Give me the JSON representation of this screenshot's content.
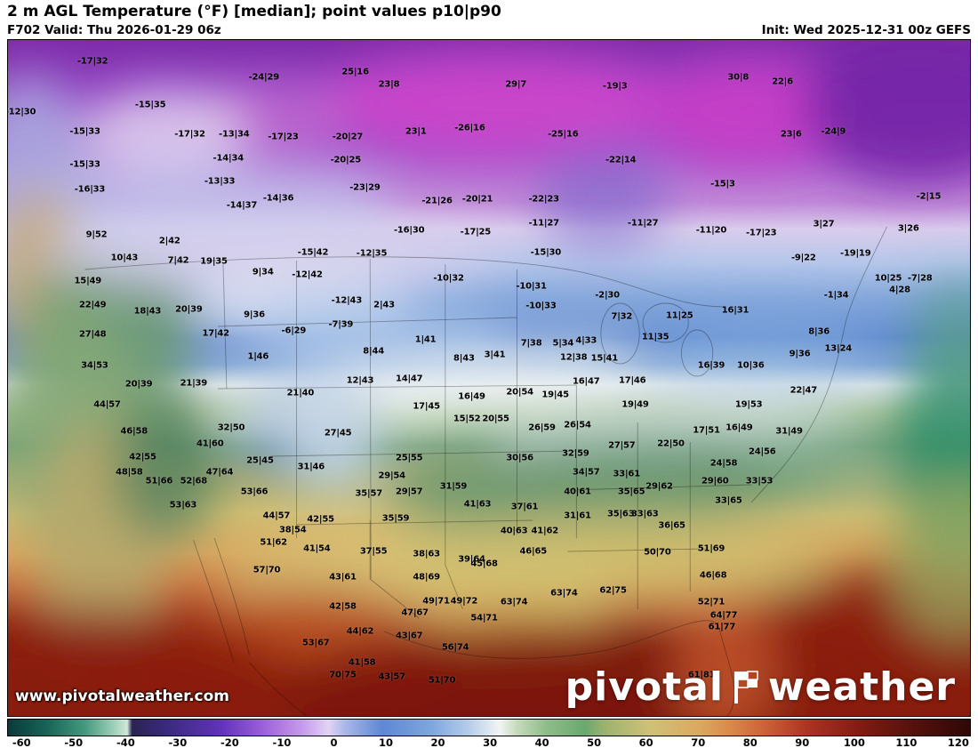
{
  "header": {
    "title": "2 m AGL Temperature (°F) [median]; point values p10|p90",
    "valid": "F702 Valid: Thu 2026-01-29 06z",
    "init": "Init: Wed 2025-12-31 00z GEFS"
  },
  "watermark": "www.pivotalweather.com",
  "logo": {
    "part1": "pivotal",
    "part2": "weather"
  },
  "colorbar": {
    "units": "°F",
    "ticks": [
      -60,
      -50,
      -40,
      -30,
      -20,
      -10,
      0,
      10,
      20,
      30,
      40,
      50,
      60,
      70,
      80,
      90,
      100,
      110,
      120
    ],
    "min": -60,
    "max": 120,
    "stops": [
      {
        "p": 0,
        "c": "#0b3a3b"
      },
      {
        "p": 4,
        "c": "#176357"
      },
      {
        "p": 8,
        "c": "#44997f"
      },
      {
        "p": 11,
        "c": "#9ed0b8"
      },
      {
        "p": 12.4,
        "c": "#cfe8da"
      },
      {
        "p": 12.9,
        "c": "#2a2352"
      },
      {
        "p": 16.7,
        "c": "#3b2a80"
      },
      {
        "p": 22.2,
        "c": "#6233b8"
      },
      {
        "p": 26.4,
        "c": "#9a5fd8"
      },
      {
        "p": 30.6,
        "c": "#c79aec"
      },
      {
        "p": 33.3,
        "c": "#e2d4f5"
      },
      {
        "p": 35,
        "c": "#aab8e8"
      },
      {
        "p": 38.9,
        "c": "#5f87d4"
      },
      {
        "p": 44,
        "c": "#7da6de"
      },
      {
        "p": 48,
        "c": "#b8cdea"
      },
      {
        "p": 51.1,
        "c": "#f2f4f4"
      },
      {
        "p": 53,
        "c": "#c4d9b8"
      },
      {
        "p": 56,
        "c": "#8fbc8a"
      },
      {
        "p": 60,
        "c": "#6aa86f"
      },
      {
        "p": 62,
        "c": "#9cb26e"
      },
      {
        "p": 66.7,
        "c": "#cfc177"
      },
      {
        "p": 72,
        "c": "#dba85e"
      },
      {
        "p": 75,
        "c": "#d98a4a"
      },
      {
        "p": 79,
        "c": "#c95f35"
      },
      {
        "p": 83.3,
        "c": "#a93222"
      },
      {
        "p": 89,
        "c": "#7d1a12"
      },
      {
        "p": 94.4,
        "c": "#54100c"
      },
      {
        "p": 100,
        "c": "#2e0806"
      }
    ]
  },
  "map_points": {
    "type": "map-points",
    "value_format": "p10|p90 (°F)",
    "points": [
      [
        8.8,
        3.2,
        "-17|32"
      ],
      [
        26.6,
        5.5,
        "-24|29"
      ],
      [
        36.1,
        4.7,
        "25|16"
      ],
      [
        39.6,
        6.6,
        "23|8"
      ],
      [
        52.8,
        6.6,
        "29|7"
      ],
      [
        63.1,
        6.9,
        "-19|3"
      ],
      [
        75.9,
        5.5,
        "30|8"
      ],
      [
        80.5,
        6.2,
        "22|6"
      ],
      [
        1.3,
        10.6,
        "-12|30"
      ],
      [
        14.8,
        9.6,
        "-15|35"
      ],
      [
        8.0,
        13.5,
        "-15|33"
      ],
      [
        18.9,
        14.0,
        "-17|32"
      ],
      [
        23.5,
        14.0,
        "-13|34"
      ],
      [
        28.6,
        14.3,
        "-17|23"
      ],
      [
        35.3,
        14.3,
        "-20|27"
      ],
      [
        42.4,
        13.5,
        "23|1"
      ],
      [
        48.0,
        13.0,
        "-26|16"
      ],
      [
        57.7,
        14.0,
        "-25|16"
      ],
      [
        81.4,
        13.9,
        "23|6"
      ],
      [
        85.8,
        13.6,
        "-24|9"
      ],
      [
        8.0,
        18.4,
        "-15|33"
      ],
      [
        22.9,
        17.5,
        "-14|34"
      ],
      [
        35.1,
        17.7,
        "-20|25"
      ],
      [
        63.7,
        17.7,
        "-22|14"
      ],
      [
        8.5,
        22.1,
        "-16|33"
      ],
      [
        22.0,
        20.9,
        "-13|33"
      ],
      [
        37.1,
        21.9,
        "-23|29"
      ],
      [
        74.3,
        21.3,
        "-15|3"
      ],
      [
        24.3,
        24.5,
        "-14|37"
      ],
      [
        28.1,
        23.4,
        "-14|36"
      ],
      [
        44.6,
        23.8,
        "-21|26"
      ],
      [
        48.8,
        23.6,
        "-20|21"
      ],
      [
        55.7,
        23.6,
        "-22|23"
      ],
      [
        95.7,
        23.1,
        "-2|15"
      ],
      [
        66.0,
        27.1,
        "-11|27"
      ],
      [
        84.8,
        27.3,
        "3|27"
      ],
      [
        93.6,
        27.9,
        "3|26"
      ],
      [
        73.1,
        28.2,
        "-11|20"
      ],
      [
        78.3,
        28.6,
        "-17|23"
      ],
      [
        41.7,
        28.2,
        "-16|30"
      ],
      [
        48.6,
        28.4,
        "-17|25"
      ],
      [
        55.7,
        27.1,
        "-11|27"
      ],
      [
        88.1,
        31.6,
        "-19|19"
      ],
      [
        82.7,
        32.3,
        "-9|22"
      ],
      [
        55.9,
        31.4,
        "-15|30"
      ],
      [
        37.8,
        31.6,
        "-12|35"
      ],
      [
        21.4,
        32.7,
        "19|35"
      ],
      [
        31.7,
        31.4,
        "-15|42"
      ],
      [
        12.1,
        32.2,
        "10|43"
      ],
      [
        16.8,
        29.7,
        "2|42"
      ],
      [
        17.7,
        32.6,
        "7|42"
      ],
      [
        8.3,
        35.6,
        "15|49"
      ],
      [
        9.2,
        28.8,
        "9|52"
      ],
      [
        31.1,
        34.7,
        "-12|42"
      ],
      [
        26.5,
        34.4,
        "9|34"
      ],
      [
        45.8,
        35.3,
        "-10|32"
      ],
      [
        54.4,
        36.4,
        "-10|31"
      ],
      [
        62.3,
        37.8,
        "-2|30"
      ],
      [
        55.4,
        39.4,
        "-10|33"
      ],
      [
        63.8,
        40.9,
        "7|32"
      ],
      [
        69.8,
        40.8,
        "11|25"
      ],
      [
        75.6,
        40.0,
        "16|31"
      ],
      [
        86.1,
        37.7,
        "-1|34"
      ],
      [
        92.7,
        37.0,
        "4|28"
      ],
      [
        91.5,
        35.3,
        "10|25"
      ],
      [
        94.8,
        35.3,
        "-7|28"
      ],
      [
        35.2,
        38.6,
        "-12|43"
      ],
      [
        39.1,
        39.2,
        "2|43"
      ],
      [
        8.8,
        39.2,
        "22|49"
      ],
      [
        14.5,
        40.1,
        "18|43"
      ],
      [
        18.8,
        39.9,
        "20|39"
      ],
      [
        25.6,
        40.6,
        "9|36"
      ],
      [
        29.7,
        43.0,
        "-6|29"
      ],
      [
        34.6,
        42.1,
        "-7|39"
      ],
      [
        8.8,
        43.5,
        "27|48"
      ],
      [
        21.6,
        43.4,
        "17|42"
      ],
      [
        43.4,
        44.4,
        "1|41"
      ],
      [
        54.4,
        44.9,
        "7|38"
      ],
      [
        57.7,
        44.9,
        "5|34"
      ],
      [
        60.1,
        44.5,
        "4|33"
      ],
      [
        67.3,
        43.9,
        "11|35"
      ],
      [
        84.3,
        43.1,
        "8|36"
      ],
      [
        86.3,
        45.7,
        "13|24"
      ],
      [
        38.0,
        46.0,
        "8|44"
      ],
      [
        47.4,
        47.1,
        "8|43"
      ],
      [
        50.6,
        46.6,
        "3|41"
      ],
      [
        58.8,
        47.0,
        "12|38"
      ],
      [
        62.0,
        47.1,
        "15|41"
      ],
      [
        73.1,
        48.2,
        "16|39"
      ],
      [
        77.2,
        48.2,
        "10|36"
      ],
      [
        82.3,
        46.4,
        "9|36"
      ],
      [
        9.0,
        48.2,
        "34|53"
      ],
      [
        26.0,
        46.8,
        "1|46"
      ],
      [
        13.6,
        50.9,
        "20|39"
      ],
      [
        19.3,
        50.8,
        "21|39"
      ],
      [
        30.4,
        52.2,
        "21|40"
      ],
      [
        36.6,
        50.4,
        "12|43"
      ],
      [
        41.7,
        50.1,
        "14|47"
      ],
      [
        48.2,
        52.7,
        "16|49"
      ],
      [
        53.2,
        52.1,
        "20|54"
      ],
      [
        56.9,
        52.5,
        "19|45"
      ],
      [
        60.1,
        50.5,
        "16|47"
      ],
      [
        64.9,
        50.4,
        "17|46"
      ],
      [
        65.2,
        53.9,
        "19|49"
      ],
      [
        77.0,
        54.0,
        "19|53"
      ],
      [
        82.7,
        51.9,
        "22|47"
      ],
      [
        10.3,
        53.9,
        "44|57"
      ],
      [
        43.5,
        54.2,
        "17|45"
      ],
      [
        47.7,
        56.1,
        "15|52"
      ],
      [
        50.7,
        56.0,
        "20|55"
      ],
      [
        55.5,
        57.4,
        "26|59"
      ],
      [
        59.2,
        57.0,
        "26|54"
      ],
      [
        34.3,
        58.2,
        "27|45"
      ],
      [
        23.2,
        57.4,
        "32|50"
      ],
      [
        13.1,
        57.9,
        "46|58"
      ],
      [
        21.0,
        59.7,
        "41|60"
      ],
      [
        14.0,
        61.7,
        "42|55"
      ],
      [
        26.2,
        62.2,
        "25|45"
      ],
      [
        12.6,
        63.9,
        "48|58"
      ],
      [
        22.0,
        64.0,
        "47|64"
      ],
      [
        15.7,
        65.3,
        "51|66"
      ],
      [
        19.3,
        65.3,
        "52|68"
      ],
      [
        25.6,
        66.9,
        "53|66"
      ],
      [
        18.2,
        68.8,
        "53|63"
      ],
      [
        31.5,
        63.1,
        "31|46"
      ],
      [
        41.7,
        61.9,
        "25|55"
      ],
      [
        39.9,
        64.5,
        "29|54"
      ],
      [
        37.5,
        67.1,
        "35|57"
      ],
      [
        41.7,
        66.9,
        "29|57"
      ],
      [
        46.3,
        66.1,
        "31|59"
      ],
      [
        40.3,
        70.8,
        "35|59"
      ],
      [
        48.8,
        68.7,
        "41|63"
      ],
      [
        53.2,
        61.9,
        "30|56"
      ],
      [
        59.0,
        61.2,
        "32|59"
      ],
      [
        60.1,
        63.9,
        "34|57"
      ],
      [
        63.8,
        60.0,
        "27|57"
      ],
      [
        68.9,
        59.7,
        "22|50"
      ],
      [
        72.6,
        57.8,
        "17|51"
      ],
      [
        76.0,
        57.4,
        "16|49"
      ],
      [
        81.2,
        57.9,
        "31|49"
      ],
      [
        74.4,
        62.6,
        "24|58"
      ],
      [
        78.4,
        60.9,
        "24|56"
      ],
      [
        78.1,
        65.3,
        "33|53"
      ],
      [
        73.5,
        65.3,
        "29|60"
      ],
      [
        67.7,
        66.1,
        "29|62"
      ],
      [
        64.3,
        64.2,
        "33|61"
      ],
      [
        64.8,
        66.9,
        "35|65"
      ],
      [
        59.2,
        66.9,
        "40|61"
      ],
      [
        53.7,
        69.1,
        "37|61"
      ],
      [
        59.2,
        70.4,
        "31|61"
      ],
      [
        63.7,
        70.1,
        "35|63"
      ],
      [
        66.2,
        70.1,
        "33|63"
      ],
      [
        69.0,
        71.9,
        "36|65"
      ],
      [
        74.9,
        68.2,
        "33|65"
      ],
      [
        52.6,
        72.6,
        "40|63"
      ],
      [
        55.8,
        72.6,
        "41|62"
      ],
      [
        54.6,
        75.7,
        "46|65"
      ],
      [
        67.5,
        75.8,
        "50|70"
      ],
      [
        73.1,
        75.2,
        "51|69"
      ],
      [
        73.3,
        79.2,
        "46|68"
      ],
      [
        73.1,
        83.2,
        "52|71"
      ],
      [
        74.4,
        85.1,
        "64|77"
      ],
      [
        74.2,
        86.8,
        "61|77"
      ],
      [
        72.1,
        94.0,
        "61|81"
      ],
      [
        49.5,
        77.5,
        "45|68"
      ],
      [
        52.6,
        83.1,
        "63|74"
      ],
      [
        57.8,
        81.8,
        "63|74"
      ],
      [
        62.9,
        81.4,
        "62|75"
      ],
      [
        27.6,
        74.4,
        "51|62"
      ],
      [
        29.6,
        72.5,
        "38|54"
      ],
      [
        27.9,
        70.4,
        "44|57"
      ],
      [
        32.5,
        70.9,
        "42|55"
      ],
      [
        32.1,
        75.2,
        "41|54"
      ],
      [
        34.8,
        79.5,
        "43|61"
      ],
      [
        38.0,
        75.6,
        "37|55"
      ],
      [
        43.5,
        76.0,
        "38|63"
      ],
      [
        48.2,
        76.8,
        "39|64"
      ],
      [
        43.5,
        79.5,
        "48|69"
      ],
      [
        44.5,
        83.0,
        "49|71"
      ],
      [
        47.4,
        83.0,
        "49|72"
      ],
      [
        49.5,
        85.5,
        "54|71"
      ],
      [
        42.3,
        84.7,
        "47|67"
      ],
      [
        41.7,
        88.1,
        "43|67"
      ],
      [
        46.5,
        89.9,
        "56|74"
      ],
      [
        34.8,
        83.8,
        "42|58"
      ],
      [
        32.0,
        89.2,
        "53|67"
      ],
      [
        36.8,
        92.1,
        "41|58"
      ],
      [
        34.8,
        94.0,
        "70|75"
      ],
      [
        39.9,
        94.2,
        "43|57"
      ],
      [
        45.1,
        94.7,
        "51|70"
      ],
      [
        36.6,
        87.5,
        "44|62"
      ],
      [
        26.9,
        78.4,
        "57|70"
      ]
    ]
  }
}
